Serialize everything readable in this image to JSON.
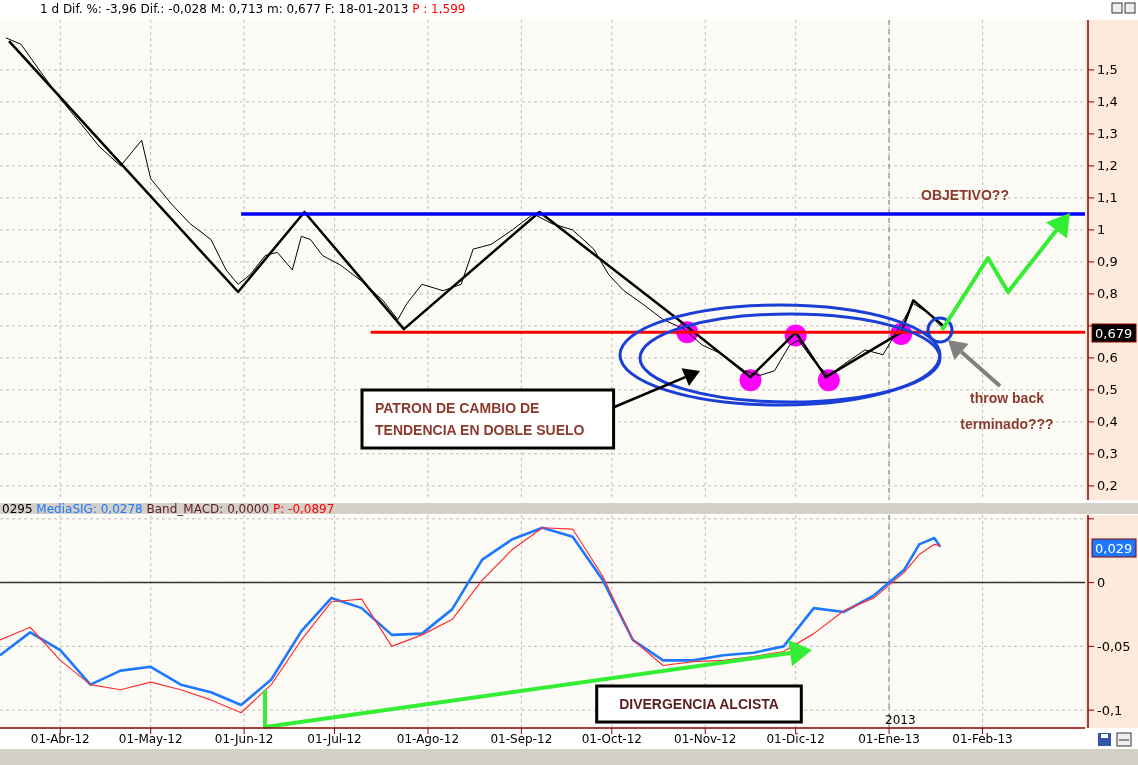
{
  "chart_data": [
    {
      "type": "line",
      "tick_labels": "y",
      "grid": true,
      "xlim": [
        "2012-03-12",
        "2013-03-07"
      ],
      "ylim": [
        0.156,
        1.656
      ],
      "xticks": [
        "2012-04-01",
        "2012-05-01",
        "2012-06-01",
        "2012-07-01",
        "2012-08-01",
        "2012-09-01",
        "2012-10-01",
        "2012-11-01",
        "2012-12-01",
        "2013-01-01",
        "2013-02-01"
      ],
      "yticks": [
        {
          "value": 0.2,
          "label": "0,2"
        },
        {
          "value": 0.3,
          "label": "0,3"
        },
        {
          "value": 0.4,
          "label": "0,4"
        },
        {
          "value": 0.5,
          "label": "0,5"
        },
        {
          "value": 0.6,
          "label": "0,6"
        },
        {
          "value": 0.7,
          "label": null
        },
        {
          "value": 0.8,
          "label": "0,8"
        },
        {
          "value": 0.9,
          "label": "0,9"
        },
        1,
        {
          "value": 1.1,
          "label": "1,1"
        },
        {
          "value": 1.2,
          "label": "1,2"
        },
        {
          "value": 1.3,
          "label": "1,3"
        },
        {
          "value": 1.4,
          "label": "1,4"
        },
        {
          "value": 1.5,
          "label": "1,5"
        }
      ],
      "ref_lines": [
        {
          "axis": "x",
          "value": "2013-01-01",
          "color": "#a0a0a0",
          "line_style": "dashed"
        }
      ],
      "annotations": [
        "1 d Dif. %: -3,96 Dif.: -0,028 M: 0,713 m: 0,677 F: 18-01-2013",
        "P : 1,599",
        "OBJETIVO??",
        "PATRON DE CAMBIO DE\nTENDENCIA EN DOBLE SUELO",
        "throw back\nterminado???",
        "0,679"
      ],
      "series": [
        {
          "color": "#000000",
          "x": [
            "2012-03-14",
            "2012-03-19",
            "2012-03-25",
            "2012-04-01",
            "2012-04-08",
            "2012-04-14",
            "2012-04-21",
            "2012-04-28",
            "2012-05-01",
            "2012-05-08",
            "2012-05-14",
            "2012-05-21",
            "2012-05-26",
            "2012-05-30",
            "2012-06-03",
            "2012-06-08",
            "2012-06-12",
            "2012-06-17",
            "2012-06-20",
            "2012-06-23",
            "2012-06-27",
            "2012-07-03",
            "2012-07-10",
            "2012-07-17",
            "2012-07-22",
            "2012-07-25",
            "2012-07-30",
            "2012-08-06",
            "2012-08-12",
            "2012-08-16",
            "2012-08-22",
            "2012-08-29",
            "2012-09-05",
            "2012-09-11",
            "2012-09-18",
            "2012-09-25",
            "2012-09-30",
            "2012-10-05",
            "2012-10-11",
            "2012-10-18",
            "2012-10-25",
            "2012-10-31",
            "2012-11-07",
            "2012-11-14",
            "2012-11-19",
            "2012-11-24",
            "2012-11-29",
            "2012-12-02",
            "2012-12-07",
            "2012-12-12",
            "2012-12-17",
            "2012-12-24",
            "2012-12-30",
            "2013-01-04",
            "2013-01-09",
            "2013-01-14",
            "2013-01-19"
          ],
          "values": [
            1.6,
            1.58,
            1.5,
            1.41,
            1.33,
            1.26,
            1.2,
            1.28,
            1.16,
            1.08,
            1.02,
            0.97,
            0.875,
            0.83,
            0.86,
            0.92,
            0.93,
            0.875,
            0.98,
            0.97,
            0.92,
            0.89,
            0.84,
            0.78,
            0.72,
            0.77,
            0.83,
            0.81,
            0.83,
            0.94,
            0.955,
            1.0,
            1.05,
            1.02,
            1.0,
            0.94,
            0.86,
            0.81,
            0.77,
            0.72,
            0.69,
            0.64,
            0.61,
            0.56,
            0.545,
            0.56,
            0.64,
            0.655,
            0.59,
            0.545,
            0.58,
            0.625,
            0.61,
            0.69,
            0.77,
            0.74,
            0.69
          ]
        },
        {
          "color": "#000000",
          "x": [
            "2012-03-15",
            "2012-05-30",
            "2012-06-21",
            "2012-07-24",
            "2012-09-07",
            "2012-10-23",
            "2012-11-16",
            "2012-12-01",
            "2012-12-11",
            "2013-01-05",
            "2013-01-09",
            "2013-01-19"
          ],
          "values": [
            1.59,
            0.806,
            1.056,
            0.69,
            1.056,
            0.72,
            0.54,
            0.68,
            0.54,
            0.68,
            0.78,
            0.7
          ]
        },
        {
          "color": "#0000ff",
          "x": [
            "2012-05-31",
            "2013-03-07"
          ],
          "values": [
            1.05,
            1.05
          ]
        },
        {
          "color": "#ff0000",
          "x": [
            "2012-07-13",
            "2013-03-07"
          ],
          "values": [
            0.68,
            0.68
          ]
        },
        {
          "type": "scatter",
          "color": "#ff00ff",
          "marker": "circle",
          "x": [
            "2012-10-26",
            "2012-11-16",
            "2012-12-01",
            "2012-12-12",
            "2013-01-05"
          ],
          "values": [
            0.68,
            0.53,
            0.67,
            0.53,
            0.675
          ]
        }
      ]
    },
    {
      "type": "line",
      "grid": true,
      "xlim": [
        "2012-03-12",
        "2013-03-07"
      ],
      "ylim": [
        -0.114,
        0.053
      ],
      "xticks": [
        {
          "value": "2012-04-01",
          "label": "01-Abr-12"
        },
        {
          "value": "2012-05-01",
          "label": "01-May-12"
        },
        {
          "value": "2012-06-01",
          "label": "01-Jun-12"
        },
        {
          "value": "2012-07-01",
          "label": "01-Jul-12"
        },
        {
          "value": "2012-08-01",
          "label": "01-Ago-12"
        },
        {
          "value": "2012-09-01",
          "label": "01-Sep-12"
        },
        {
          "value": "2012-10-01",
          "label": "01-Oct-12"
        },
        {
          "value": "2012-11-01",
          "label": "01-Nov-12"
        },
        {
          "value": "2012-12-01",
          "label": "01-Dic-12"
        },
        {
          "value": "2013-01-01",
          "label": "01-Ene-13"
        },
        {
          "value": "2013-02-01",
          "label": "01-Feb-13"
        }
      ],
      "yticks": [
        {
          "value": 0.05,
          "label": null
        },
        0,
        {
          "value": -0.05,
          "label": "-0,05"
        },
        {
          "value": -0.1,
          "label": "-0,1"
        }
      ],
      "ref_lines": [
        {
          "axis": "x",
          "value": "2013-01-01",
          "color": "#a0a0a0",
          "line_style": "dashed"
        },
        {
          "axis": "y",
          "value": 0,
          "color": "#333333",
          "line_style": "solid"
        }
      ],
      "annotations": [
        "0295",
        "MediaSIG: 0,0278",
        "Band_MACD: 0,0000",
        "P: -0,0897",
        "DIVERGENCIA ALCISTA",
        "0,029",
        "2013"
      ],
      "series": [
        {
          "color": "#1e78ff",
          "x": [
            "2012-03-12",
            "2012-03-22",
            "2012-04-01",
            "2012-04-11",
            "2012-04-21",
            "2012-05-01",
            "2012-05-11",
            "2012-05-21",
            "2012-05-31",
            "2012-06-10",
            "2012-06-20",
            "2012-06-30",
            "2012-07-10",
            "2012-07-20",
            "2012-07-30",
            "2012-08-09",
            "2012-08-19",
            "2012-08-29",
            "2012-09-08",
            "2012-09-18",
            "2012-09-28",
            "2012-10-08",
            "2012-10-18",
            "2012-10-28",
            "2012-11-07",
            "2012-11-17",
            "2012-11-27",
            "2012-12-07",
            "2012-12-17",
            "2012-12-27",
            "2013-01-06",
            "2013-01-11",
            "2013-01-16",
            "2013-01-18"
          ],
          "values": [
            -0.057,
            -0.039,
            -0.053,
            -0.08,
            -0.069,
            -0.066,
            -0.08,
            -0.086,
            -0.096,
            -0.076,
            -0.038,
            -0.012,
            -0.02,
            -0.041,
            -0.04,
            -0.021,
            0.018,
            0.034,
            0.043,
            0.036,
            0.002,
            -0.045,
            -0.061,
            -0.061,
            -0.057,
            -0.055,
            -0.05,
            -0.02,
            -0.023,
            -0.01,
            0.01,
            0.03,
            0.035,
            0.028
          ]
        },
        {
          "color": "#ff3030",
          "x": [
            "2012-03-12",
            "2012-03-22",
            "2012-04-01",
            "2012-04-11",
            "2012-04-21",
            "2012-05-01",
            "2012-05-11",
            "2012-05-21",
            "2012-05-31",
            "2012-06-10",
            "2012-06-20",
            "2012-06-30",
            "2012-07-10",
            "2012-07-20",
            "2012-07-30",
            "2012-08-09",
            "2012-08-19",
            "2012-08-29",
            "2012-09-08",
            "2012-09-18",
            "2012-09-28",
            "2012-10-08",
            "2012-10-18",
            "2012-10-28",
            "2012-11-07",
            "2012-11-17",
            "2012-11-27",
            "2012-12-07",
            "2012-12-17",
            "2012-12-27",
            "2013-01-06",
            "2013-01-11",
            "2013-01-16",
            "2013-01-18"
          ],
          "values": [
            -0.045,
            -0.035,
            -0.061,
            -0.08,
            -0.084,
            -0.078,
            -0.084,
            -0.092,
            -0.102,
            -0.08,
            -0.045,
            -0.015,
            -0.013,
            -0.05,
            -0.041,
            -0.029,
            0.002,
            0.026,
            0.043,
            0.042,
            0.005,
            -0.045,
            -0.065,
            -0.062,
            -0.061,
            -0.058,
            -0.054,
            -0.04,
            -0.022,
            -0.012,
            0.008,
            0.022,
            0.03,
            0.029
          ]
        }
      ]
    }
  ]
}
